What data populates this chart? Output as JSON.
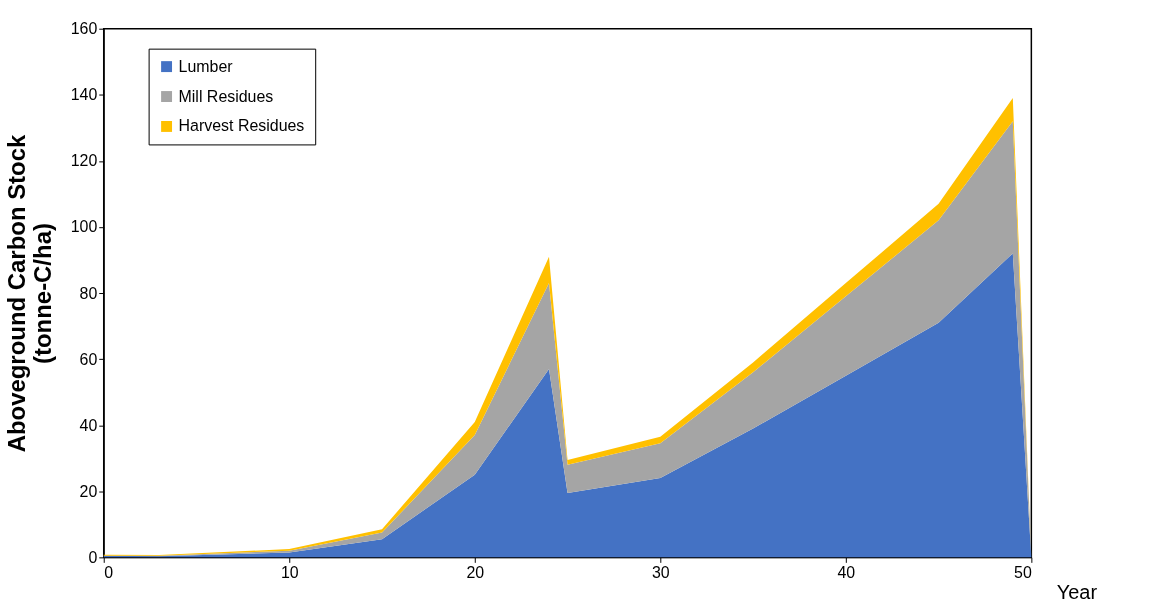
{
  "chart_data": {
    "type": "area",
    "stacked": true,
    "xlabel": "Year",
    "ylabel": "Aboveground Carbon Stock\n(tonne-C/ha)",
    "x": [
      0,
      3,
      10,
      15,
      20,
      24,
      25,
      30,
      35,
      40,
      45,
      49,
      50
    ],
    "series": [
      {
        "name": "Lumber",
        "color": "#4472c4",
        "values": [
          0.5,
          0.3,
          1.5,
          5.5,
          25,
          57,
          19.5,
          24,
          39,
          55,
          71,
          92,
          0
        ]
      },
      {
        "name": "Mill Residues",
        "color": "#a5a5a5",
        "values": [
          0,
          0.2,
          0.5,
          2,
          12,
          26,
          8.5,
          10.5,
          17,
          24,
          31,
          40,
          0
        ]
      },
      {
        "name": "Harvest Residues",
        "color": "#ffc000",
        "values": [
          0.3,
          0.2,
          0.5,
          1,
          4,
          8,
          1.5,
          2,
          3,
          4,
          5,
          7,
          0
        ]
      }
    ],
    "xlim": [
      0,
      50
    ],
    "xticks": [
      0,
      10,
      20,
      30,
      40,
      50
    ],
    "ylim": [
      0,
      160
    ],
    "yticks": [
      0,
      20,
      40,
      60,
      80,
      100,
      120,
      140,
      160
    ],
    "grid": false,
    "legend": "top left"
  }
}
